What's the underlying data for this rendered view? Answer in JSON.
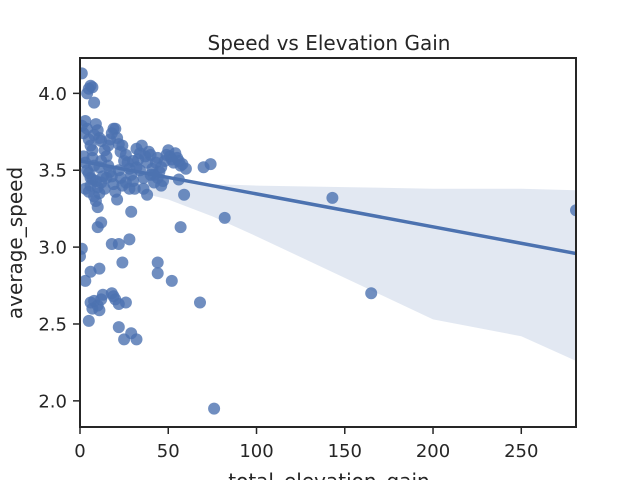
{
  "chart_data": {
    "type": "scatter",
    "title": "Speed vs Elevation Gain",
    "xlabel": "total_elevation_gain",
    "ylabel": "average_speed",
    "xlim": [
      0,
      281
    ],
    "ylim": [
      1.83,
      4.23
    ],
    "xticks": [
      0,
      50,
      100,
      150,
      200,
      250
    ],
    "yticks": [
      2.0,
      2.5,
      3.0,
      3.5,
      4.0
    ],
    "ytick_labels": [
      "2.0",
      "2.5",
      "3.0",
      "3.5",
      "4.0"
    ],
    "grid": false,
    "point_color": "#4c72b0",
    "regression": {
      "slope": -0.00214,
      "intercept": 3.56,
      "ci_band_color": "#dde4f0",
      "ci_lower": [
        [
          0,
          3.4
        ],
        [
          25,
          3.38
        ],
        [
          50,
          3.31
        ],
        [
          75,
          3.2
        ],
        [
          100,
          3.07
        ],
        [
          150,
          2.8
        ],
        [
          200,
          2.53
        ],
        [
          250,
          2.42
        ],
        [
          281,
          2.26
        ]
      ],
      "ci_upper": [
        [
          0,
          3.58
        ],
        [
          25,
          3.52
        ],
        [
          50,
          3.45
        ],
        [
          75,
          3.41
        ],
        [
          100,
          3.4
        ],
        [
          150,
          3.39
        ],
        [
          200,
          3.38
        ],
        [
          250,
          3.38
        ],
        [
          281,
          3.37
        ]
      ]
    },
    "points": [
      [
        1,
        4.13
      ],
      [
        4,
        4.0
      ],
      [
        5,
        4.03
      ],
      [
        6,
        4.05
      ],
      [
        7,
        4.04
      ],
      [
        8,
        3.94
      ],
      [
        1,
        3.79
      ],
      [
        2,
        3.74
      ],
      [
        3,
        3.82
      ],
      [
        4,
        3.77
      ],
      [
        5,
        3.7
      ],
      [
        6,
        3.66
      ],
      [
        7,
        3.63
      ],
      [
        8,
        3.73
      ],
      [
        9,
        3.8
      ],
      [
        10,
        3.76
      ],
      [
        11,
        3.71
      ],
      [
        12,
        3.69
      ],
      [
        2,
        3.59
      ],
      [
        3,
        3.55
      ],
      [
        4,
        3.5
      ],
      [
        5,
        3.48
      ],
      [
        6,
        3.45
      ],
      [
        7,
        3.58
      ],
      [
        8,
        3.53
      ],
      [
        9,
        3.43
      ],
      [
        10,
        3.39
      ],
      [
        11,
        3.52
      ],
      [
        12,
        3.56
      ],
      [
        13,
        3.46
      ],
      [
        3,
        3.38
      ],
      [
        5,
        3.36
      ],
      [
        6,
        3.4
      ],
      [
        7,
        3.44
      ],
      [
        8,
        3.33
      ],
      [
        9,
        3.3
      ],
      [
        10,
        3.26
      ],
      [
        11,
        3.35
      ],
      [
        12,
        3.42
      ],
      [
        14,
        3.38
      ],
      [
        15,
        3.45
      ],
      [
        14,
        3.63
      ],
      [
        15,
        3.59
      ],
      [
        16,
        3.66
      ],
      [
        17,
        3.7
      ],
      [
        18,
        3.74
      ],
      [
        19,
        3.77
      ],
      [
        20,
        3.77
      ],
      [
        21,
        3.71
      ],
      [
        22,
        3.67
      ],
      [
        23,
        3.62
      ],
      [
        16,
        3.53
      ],
      [
        17,
        3.49
      ],
      [
        18,
        3.46
      ],
      [
        19,
        3.41
      ],
      [
        20,
        3.36
      ],
      [
        21,
        3.31
      ],
      [
        22,
        3.5
      ],
      [
        23,
        3.45
      ],
      [
        24,
        3.4
      ],
      [
        25,
        3.56
      ],
      [
        26,
        3.6
      ],
      [
        27,
        3.55
      ],
      [
        28,
        3.51
      ],
      [
        29,
        3.47
      ],
      [
        30,
        3.43
      ],
      [
        31,
        3.38
      ],
      [
        32,
        3.52
      ],
      [
        33,
        3.57
      ],
      [
        34,
        3.61
      ],
      [
        35,
        3.66
      ],
      [
        24,
        3.66
      ],
      [
        26,
        3.42
      ],
      [
        28,
        3.38
      ],
      [
        30,
        3.56
      ],
      [
        32,
        3.64
      ],
      [
        34,
        3.5
      ],
      [
        36,
        3.45
      ],
      [
        37,
        3.59
      ],
      [
        38,
        3.55
      ],
      [
        39,
        3.62
      ],
      [
        40,
        3.6
      ],
      [
        41,
        3.51
      ],
      [
        42,
        3.47
      ],
      [
        43,
        3.55
      ],
      [
        44,
        3.58
      ],
      [
        45,
        3.49
      ],
      [
        46,
        3.52
      ],
      [
        47,
        3.43
      ],
      [
        48,
        3.56
      ],
      [
        49,
        3.6
      ],
      [
        50,
        3.63
      ],
      [
        51,
        3.59
      ],
      [
        52,
        3.57
      ],
      [
        53,
        3.55
      ],
      [
        54,
        3.61
      ],
      [
        55,
        3.58
      ],
      [
        56,
        3.56
      ],
      [
        57,
        3.53
      ],
      [
        58,
        3.54
      ],
      [
        60,
        3.51
      ],
      [
        36,
        3.38
      ],
      [
        38,
        3.34
      ],
      [
        40,
        3.47
      ],
      [
        42,
        3.42
      ],
      [
        44,
        3.45
      ],
      [
        46,
        3.4
      ],
      [
        56,
        3.44
      ],
      [
        59,
        3.34
      ],
      [
        70,
        3.52
      ],
      [
        74,
        3.54
      ],
      [
        82,
        3.19
      ],
      [
        143,
        3.32
      ],
      [
        281,
        3.24
      ],
      [
        57,
        3.13
      ],
      [
        165,
        2.7
      ],
      [
        1,
        2.99
      ],
      [
        0,
        2.94
      ],
      [
        10,
        3.13
      ],
      [
        12,
        3.16
      ],
      [
        3,
        2.78
      ],
      [
        6,
        2.84
      ],
      [
        11,
        2.86
      ],
      [
        18,
        3.02
      ],
      [
        22,
        3.02
      ],
      [
        24,
        2.9
      ],
      [
        28,
        3.05
      ],
      [
        29,
        3.23
      ],
      [
        44,
        2.9
      ],
      [
        44,
        2.83
      ],
      [
        52,
        2.78
      ],
      [
        6,
        2.64
      ],
      [
        7,
        2.6
      ],
      [
        8,
        2.65
      ],
      [
        10,
        2.62
      ],
      [
        12,
        2.66
      ],
      [
        11,
        2.59
      ],
      [
        5,
        2.52
      ],
      [
        13,
        2.69
      ],
      [
        18,
        2.7
      ],
      [
        19,
        2.68
      ],
      [
        20,
        2.66
      ],
      [
        22,
        2.63
      ],
      [
        26,
        2.64
      ],
      [
        22,
        2.48
      ],
      [
        25,
        2.4
      ],
      [
        29,
        2.44
      ],
      [
        32,
        2.4
      ],
      [
        68,
        2.64
      ],
      [
        76,
        1.95
      ]
    ]
  }
}
